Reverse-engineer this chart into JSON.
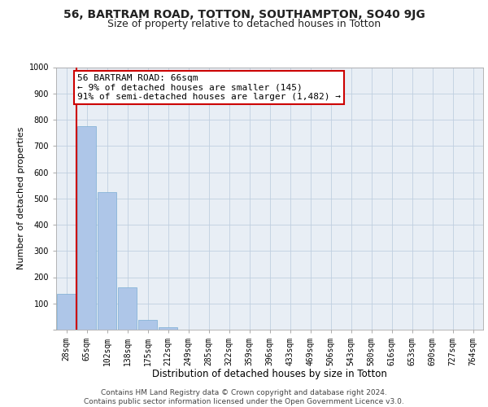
{
  "title_line1": "56, BARTRAM ROAD, TOTTON, SOUTHAMPTON, SO40 9JG",
  "title_line2": "Size of property relative to detached houses in Totton",
  "xlabel": "Distribution of detached houses by size in Totton",
  "ylabel": "Number of detached properties",
  "categories": [
    "28sqm",
    "65sqm",
    "102sqm",
    "138sqm",
    "175sqm",
    "212sqm",
    "249sqm",
    "285sqm",
    "322sqm",
    "359sqm",
    "396sqm",
    "433sqm",
    "469sqm",
    "506sqm",
    "543sqm",
    "580sqm",
    "616sqm",
    "653sqm",
    "690sqm",
    "727sqm",
    "764sqm"
  ],
  "values": [
    135,
    775,
    525,
    160,
    38,
    10,
    0,
    0,
    0,
    0,
    0,
    0,
    0,
    0,
    0,
    0,
    0,
    0,
    0,
    0,
    0
  ],
  "bar_color": "#aec6e8",
  "bar_edge_color": "#7aadd4",
  "vline_x_index": 1,
  "vline_color": "#cc0000",
  "annotation_text": "56 BARTRAM ROAD: 66sqm\n← 9% of detached houses are smaller (145)\n91% of semi-detached houses are larger (1,482) →",
  "annotation_box_color": "#ffffff",
  "annotation_box_edge_color": "#cc0000",
  "ylim": [
    0,
    1000
  ],
  "yticks": [
    0,
    100,
    200,
    300,
    400,
    500,
    600,
    700,
    800,
    900,
    1000
  ],
  "bg_color": "#e8eef5",
  "footer_text": "Contains HM Land Registry data © Crown copyright and database right 2024.\nContains public sector information licensed under the Open Government Licence v3.0.",
  "title1_fontsize": 10,
  "title2_fontsize": 9,
  "xlabel_fontsize": 8.5,
  "ylabel_fontsize": 8,
  "tick_fontsize": 7,
  "annotation_fontsize": 8,
  "footer_fontsize": 6.5
}
